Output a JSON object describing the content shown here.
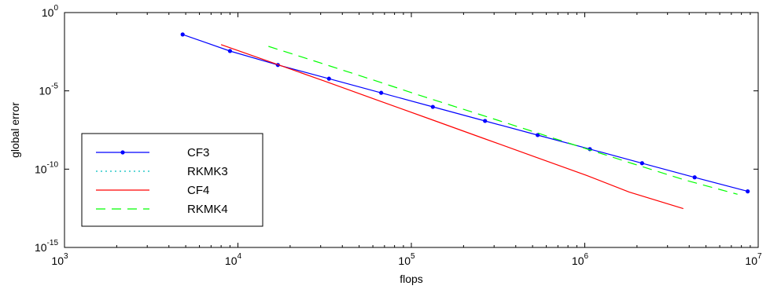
{
  "chart_data": {
    "type": "line",
    "xlabel": "flops",
    "ylabel": "global error",
    "xscale": "log",
    "yscale": "log",
    "xlim": [
      1000,
      10000000
    ],
    "ylim": [
      1e-15,
      1
    ],
    "x_ticks": [
      {
        "base": "10",
        "exp": "3",
        "value": 1000
      },
      {
        "base": "10",
        "exp": "4",
        "value": 10000
      },
      {
        "base": "10",
        "exp": "5",
        "value": 100000
      },
      {
        "base": "10",
        "exp": "6",
        "value": 1000000
      },
      {
        "base": "10",
        "exp": "7",
        "value": 10000000
      }
    ],
    "y_ticks": [
      {
        "base": "10",
        "exp": "0",
        "value": 1
      },
      {
        "base": "10",
        "exp": "-5",
        "value": 1e-05
      },
      {
        "base": "10",
        "exp": "-10",
        "value": 1e-10
      },
      {
        "base": "10",
        "exp": "-15",
        "value": 1e-15
      }
    ],
    "grid": false,
    "legend_position": "bottom-left",
    "series": [
      {
        "name": "CF3",
        "color": "#0000ff",
        "style": "solid",
        "marker": "dot",
        "x": [
          4800,
          9000,
          17000,
          33500,
          67000,
          133000,
          266000,
          535000,
          1070000,
          2140000,
          4300000,
          8700000
        ],
        "y": [
          0.04,
          0.0035,
          0.00045,
          6e-05,
          7.5e-06,
          9.5e-07,
          1.2e-07,
          1.5e-08,
          1.9e-09,
          2.4e-10,
          3e-11,
          3.8e-12
        ]
      },
      {
        "name": "RKMK3",
        "color": "#00bfbf",
        "style": "dotted",
        "marker": "none",
        "x": [],
        "y": []
      },
      {
        "name": "CF4",
        "color": "#ff0000",
        "style": "solid",
        "marker": "none",
        "x": [
          8000,
          16000,
          32000,
          64000,
          128000,
          256000,
          512000,
          1024000,
          1800000,
          3700000
        ],
        "y": [
          0.009,
          0.0006,
          4e-05,
          2.5e-06,
          1.6e-07,
          1e-08,
          6.3e-10,
          4e-11,
          3.5e-12,
          3e-13
        ]
      },
      {
        "name": "RKMK4",
        "color": "#00ff00",
        "style": "dashed",
        "marker": "none",
        "x": [
          15000,
          30000,
          60000,
          120000,
          240000,
          480000,
          960000,
          1900000,
          3800000,
          7600000
        ],
        "y": [
          0.007,
          0.0006,
          5e-05,
          4e-06,
          3.5e-07,
          3e-08,
          2.5e-09,
          2.2e-10,
          2e-11,
          2.5e-12
        ]
      }
    ]
  }
}
